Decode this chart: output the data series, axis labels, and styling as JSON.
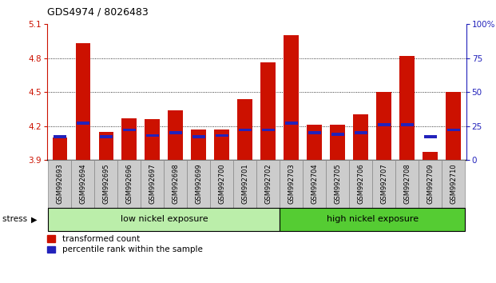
{
  "title": "GDS4974 / 8026483",
  "samples": [
    "GSM992693",
    "GSM992694",
    "GSM992695",
    "GSM992696",
    "GSM992697",
    "GSM992698",
    "GSM992699",
    "GSM992700",
    "GSM992701",
    "GSM992702",
    "GSM992703",
    "GSM992704",
    "GSM992705",
    "GSM992706",
    "GSM992707",
    "GSM992708",
    "GSM992709",
    "GSM992710"
  ],
  "red_values": [
    4.1,
    4.93,
    4.15,
    4.27,
    4.26,
    4.34,
    4.17,
    4.17,
    4.44,
    4.76,
    5.0,
    4.21,
    4.21,
    4.3,
    4.5,
    4.82,
    3.97,
    4.5
  ],
  "blue_pcts": [
    17,
    27,
    17,
    22,
    18,
    20,
    17,
    18,
    22,
    22,
    27,
    20,
    19,
    20,
    26,
    26,
    17,
    22
  ],
  "ymin": 3.9,
  "ymax": 5.1,
  "y_ticks": [
    3.9,
    4.2,
    4.5,
    4.8,
    5.1
  ],
  "right_yticks": [
    0,
    25,
    50,
    75,
    100
  ],
  "right_yticklabels": [
    "0",
    "25",
    "50",
    "75",
    "100%"
  ],
  "grid_values": [
    4.2,
    4.5,
    4.8
  ],
  "bar_color_red": "#cc1100",
  "bar_color_blue": "#2222bb",
  "bar_width": 0.65,
  "low_nickel_count": 10,
  "high_nickel_count": 8,
  "low_nickel_label": "low nickel exposure",
  "high_nickel_label": "high nickel exposure",
  "low_nickel_color": "#bbeeaa",
  "high_nickel_color": "#55cc33",
  "stress_label": "stress",
  "legend_red": "transformed count",
  "legend_blue": "percentile rank within the sample",
  "left_axis_color": "#cc1100",
  "right_axis_color": "#2222bb",
  "tick_label_bg": "#cccccc",
  "tick_label_fontsize": 6.0
}
